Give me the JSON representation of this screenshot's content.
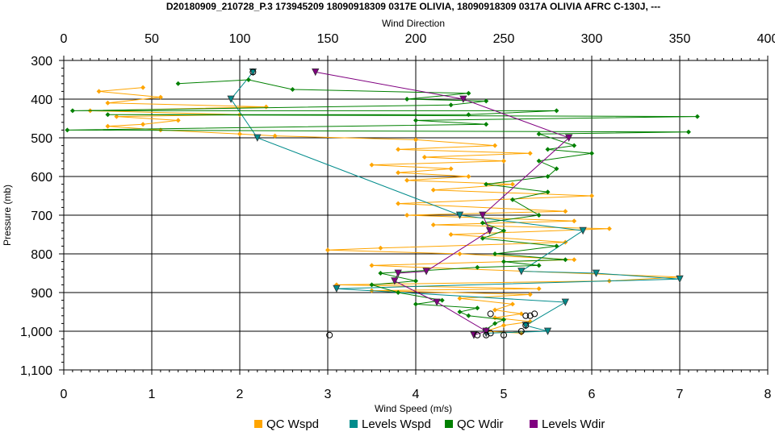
{
  "chart_data": {
    "type": "scatter",
    "title": "D20180909_210728_P.3 173945209 18090918309 0317E OLIVIA, 18090918309 0317A OLIVIA AFRC C-130J, ---",
    "xlabel": "Wind Speed (m/s)",
    "x2label": "Wind Direction",
    "ylabel": "Pressure (mb)",
    "xlim": [
      0,
      8
    ],
    "x2lim": [
      0,
      400
    ],
    "ylim": [
      300,
      1100
    ],
    "y_inverted": true,
    "grid": true,
    "legend_position": "bottom",
    "x_ticks": [
      "0",
      "1",
      "2",
      "3",
      "4",
      "5",
      "6",
      "7",
      "8"
    ],
    "x2_ticks": [
      "0",
      "50",
      "100",
      "150",
      "200",
      "250",
      "300",
      "350",
      "400"
    ],
    "y_ticks": [
      "300",
      "400",
      "500",
      "600",
      "700",
      "800",
      "900",
      "1,000",
      "1,100"
    ],
    "series": [
      {
        "name": "QC Wspd",
        "color": "#FFA500",
        "axis": "bottom",
        "x": [
          0.9,
          0.4,
          1.1,
          0.5,
          2.3,
          0.3,
          2.0,
          0.6,
          1.3,
          0.9,
          0.5,
          1.1,
          2.0,
          2.4,
          4.0,
          4.9,
          3.8,
          5.3,
          4.1,
          5.0,
          3.5,
          4.4,
          3.8,
          4.6,
          3.9,
          5.1,
          4.2,
          6.0,
          3.8,
          5.7,
          3.9,
          5.8,
          4.2,
          6.2,
          4.4,
          5.7,
          3.6,
          3.0,
          4.5,
          5.8,
          3.5,
          7.0,
          6.2,
          3.1,
          5.4,
          3.5,
          5.3,
          4.5,
          5.1,
          4.9,
          5.2,
          4.9,
          5.3,
          5.0,
          4.8,
          5.2
        ],
        "y": [
          370,
          380,
          395,
          410,
          420,
          430,
          440,
          445,
          455,
          465,
          470,
          480,
          490,
          495,
          505,
          520,
          530,
          540,
          550,
          560,
          570,
          580,
          590,
          600,
          610,
          620,
          635,
          650,
          670,
          690,
          700,
          715,
          725,
          735,
          750,
          770,
          785,
          790,
          800,
          815,
          830,
          860,
          870,
          880,
          890,
          895,
          905,
          915,
          930,
          945,
          955,
          965,
          975,
          985,
          1000,
          1005
        ]
      },
      {
        "name": "Levels Wspd",
        "color": "#008B8B",
        "axis": "bottom",
        "x": [
          2.15,
          1.9,
          2.2,
          4.5,
          5.9,
          5.2,
          6.05,
          7.0,
          3.1,
          5.7,
          5.25,
          5.5,
          4.8
        ],
        "y": [
          330,
          400,
          500,
          700,
          740,
          845,
          850,
          865,
          890,
          925,
          985,
          1000,
          1005
        ]
      },
      {
        "name": "QC Wdir",
        "color": "#008000",
        "axis": "top",
        "x": [
          65,
          105,
          130,
          230,
          195,
          240,
          220,
          5,
          280,
          230,
          25,
          360,
          200,
          240,
          2,
          355,
          270,
          290,
          275,
          300,
          270,
          280,
          275,
          240,
          275,
          255,
          270,
          238,
          250,
          238,
          280,
          245,
          285,
          250,
          270,
          235,
          180,
          200,
          175,
          190,
          215,
          200,
          235,
          225,
          230,
          250,
          245,
          240
        ],
        "y": [
          360,
          350,
          375,
          385,
          400,
          405,
          415,
          430,
          430,
          440,
          440,
          445,
          455,
          465,
          480,
          485,
          490,
          520,
          530,
          540,
          560,
          580,
          600,
          620,
          640,
          660,
          700,
          720,
          740,
          760,
          780,
          800,
          815,
          820,
          830,
          835,
          850,
          870,
          880,
          900,
          920,
          930,
          940,
          950,
          960,
          970,
          980,
          995
        ]
      },
      {
        "name": "Levels Wdir",
        "color": "#800080",
        "axis": "top",
        "x": [
          143,
          227,
          287,
          238,
          242,
          206,
          190,
          188,
          212,
          240,
          233
        ],
        "y": [
          330,
          400,
          500,
          700,
          740,
          845,
          850,
          870,
          925,
          1000,
          1010
        ]
      }
    ],
    "circle_markers": {
      "x": [
        2.15,
        3.02,
        4.7,
        4.8,
        4.85,
        5.0,
        5.2,
        5.25,
        5.25,
        5.3,
        4.85,
        5.35
      ],
      "y": [
        330,
        1010,
        1010,
        1010,
        1005,
        1010,
        1000,
        985,
        960,
        960,
        955,
        955
      ]
    }
  }
}
